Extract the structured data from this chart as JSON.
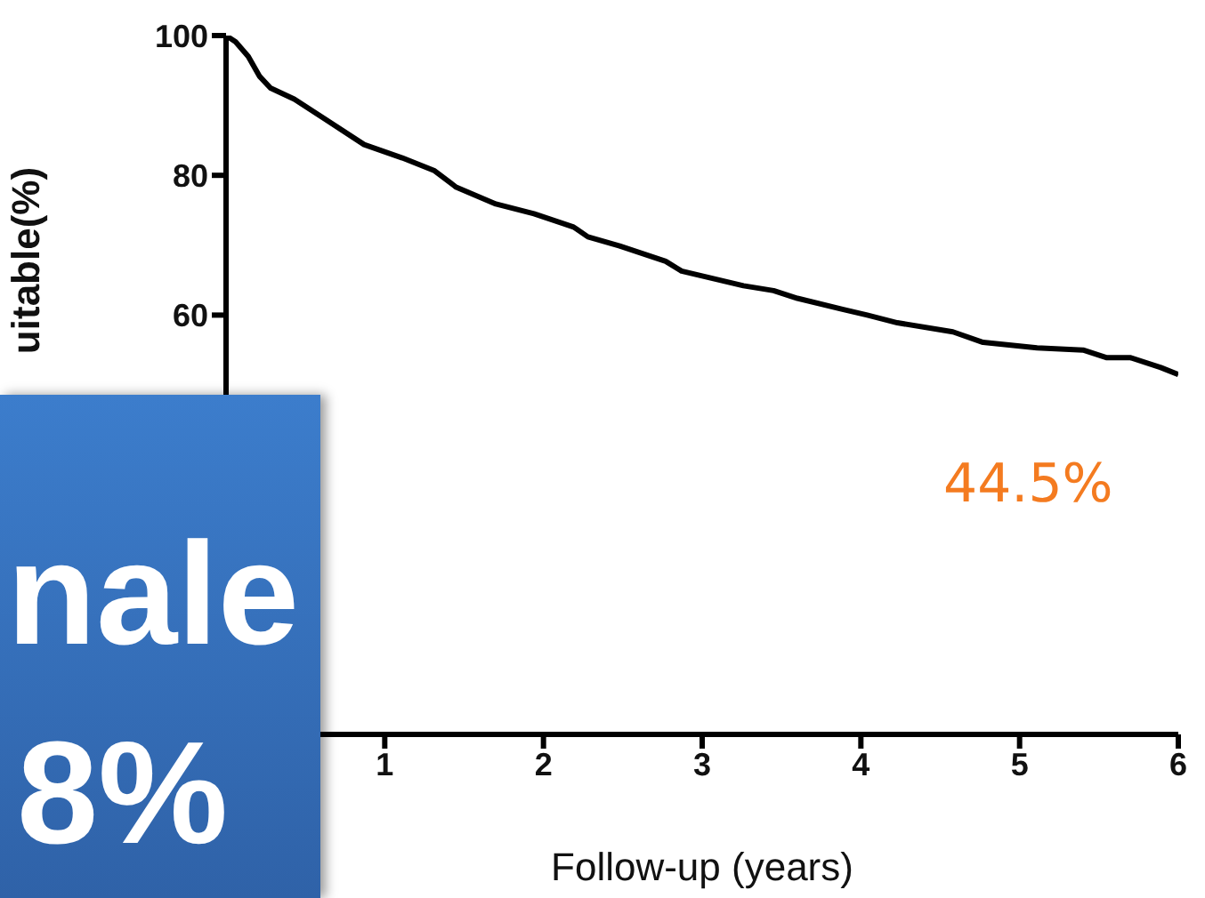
{
  "chart_data": {
    "type": "line",
    "xlabel": "Follow-up (years)",
    "ylabel": "uitable(%)",
    "xlim": [
      0,
      6
    ],
    "xticks": [
      1,
      2,
      3,
      4,
      5,
      6
    ],
    "ylim": [
      0,
      100
    ],
    "yticks": [
      60,
      80,
      100
    ],
    "marker": "none",
    "line_style": "solid",
    "x": [
      0,
      0.06,
      0.14,
      0.21,
      0.28,
      0.43,
      0.62,
      0.87,
      1.11,
      1.31,
      1.45,
      1.7,
      1.94,
      2.19,
      2.28,
      2.48,
      2.77,
      2.87,
      3.26,
      3.45,
      3.6,
      3.89,
      4.04,
      4.23,
      4.58,
      4.77,
      5.11,
      5.4,
      5.55,
      5.7,
      5.89,
      6
    ],
    "series": [
      {
        "color": "#000000",
        "values": [
          100,
          99.1,
          97,
          94.2,
          92.5,
          90.9,
          88.1,
          84.4,
          82.5,
          80.7,
          78.3,
          75.9,
          74.5,
          72.6,
          71.2,
          69.9,
          67.7,
          66.3,
          64.2,
          63.5,
          62.4,
          60.8,
          60,
          58.9,
          57.6,
          56.1,
          55.3,
          55,
          53.9,
          53.9,
          52.5,
          51.5
        ]
      }
    ],
    "annotations": [
      "44.5%",
      "nale",
      "8%"
    ]
  }
}
